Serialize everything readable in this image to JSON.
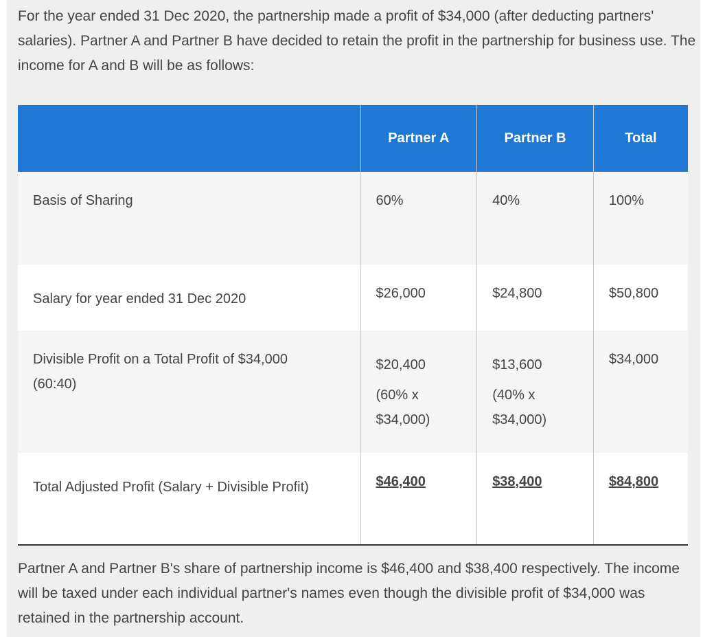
{
  "intro": "For the year ended 31 Dec 2020, the partnership made a profit of $34,000 (after deducting partners' salaries). Partner A and Partner B have decided to retain the profit in the partnership for business use. The income for A and B will be as follows:",
  "table": {
    "headers": [
      "",
      "Partner A",
      "Partner B",
      "Total"
    ],
    "rows": [
      {
        "label": "Basis of Sharing",
        "a": "60%",
        "b": "40%",
        "total": "100%"
      },
      {
        "label": "Salary for year ended 31 Dec 2020",
        "a": "$26,000",
        "b": "$24,800",
        "total": "$50,800"
      },
      {
        "label": "Divisible Profit on a Total Profit of $34,000 (60:40)",
        "a": "$20,400",
        "a_note": "(60% x $34,000)",
        "b": "$13,600",
        "b_note": "(40% x $34,000)",
        "total": "$34,000"
      },
      {
        "label": "Total Adjusted Profit (Salary + Divisible Profit)",
        "a": "$46,400",
        "b": "$38,400",
        "total": "$84,800"
      }
    ]
  },
  "outro": "Partner A and Partner B's share of partnership income is $46,400 and $38,400 respectively. The income will be taxed under each individual partner's names even though the divisible profit of $34,000 was retained in the partnership account.",
  "colors": {
    "header_bg": "#1e78d4",
    "panel_bg": "#efefef",
    "row_alt_bg": "#f5f5f5"
  }
}
